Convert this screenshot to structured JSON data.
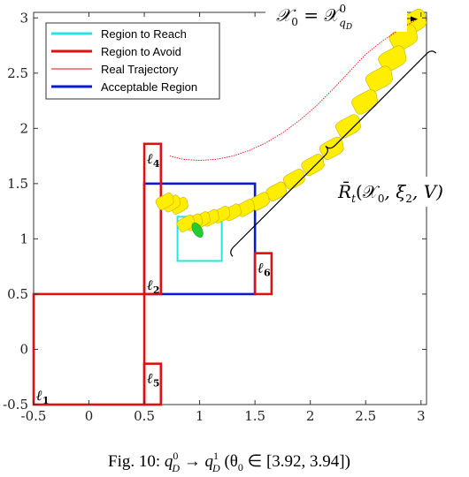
{
  "chart_data": {
    "type": "line",
    "xlim": [
      -0.5,
      3.05
    ],
    "ylim": [
      -0.5,
      3.05
    ],
    "xticks": [
      -0.5,
      0,
      0.5,
      1,
      1.5,
      2,
      2.5,
      3
    ],
    "yticks": [
      -0.5,
      0,
      0.5,
      1,
      1.5,
      2,
      2.5,
      3
    ],
    "xtick_labels": [
      "-0.5",
      "0",
      "0.5",
      "1",
      "1.5",
      "2",
      "2.5",
      "3"
    ],
    "ytick_labels": [
      "-0.5",
      "0",
      "0.5",
      "1",
      "1.5",
      "2",
      "2.5",
      "3"
    ],
    "grid": false,
    "legend_position": "top-left",
    "legend": [
      {
        "label": "Region to Reach",
        "color": "#22e5e5",
        "style": "thick"
      },
      {
        "label": "Region to Avoid",
        "color": "#dd1111",
        "style": "thick"
      },
      {
        "label": "Real Trajectory",
        "color": "#dd1111",
        "style": "thin"
      },
      {
        "label": "Acceptable Region",
        "color": "#0a1ad0",
        "style": "thick"
      }
    ],
    "avoid_regions": [
      {
        "label": "ℓ",
        "sub": "1",
        "x": [
          -0.5,
          0.5
        ],
        "y": [
          -0.5,
          0.5
        ]
      },
      {
        "label": "ℓ",
        "sub": "4",
        "x": [
          0.5,
          0.65
        ],
        "y": [
          0.5,
          1.86
        ]
      },
      {
        "label": "ℓ",
        "sub": "5",
        "x": [
          0.5,
          0.65
        ],
        "y": [
          -0.5,
          -0.13
        ]
      },
      {
        "label": "ℓ",
        "sub": "6",
        "x": [
          1.5,
          1.65
        ],
        "y": [
          0.5,
          0.87
        ]
      }
    ],
    "acceptable_region": {
      "label": "ℓ",
      "sub": "2",
      "x": [
        0.5,
        1.5
      ],
      "y": [
        0.5,
        1.5
      ]
    },
    "reach_region": {
      "x": [
        0.8,
        1.2
      ],
      "y": [
        0.8,
        1.2
      ]
    },
    "trajectory": {
      "x": [
        0.73,
        0.85,
        1.0,
        1.15,
        1.3,
        1.45,
        1.6,
        1.75,
        1.9,
        2.05,
        2.2,
        2.35,
        2.5,
        2.65,
        2.8,
        2.9,
        2.97
      ],
      "y": [
        1.75,
        1.72,
        1.71,
        1.72,
        1.75,
        1.8,
        1.87,
        1.96,
        2.07,
        2.2,
        2.35,
        2.51,
        2.67,
        2.79,
        2.89,
        2.95,
        2.99
      ]
    },
    "reach_set_blobs": [
      {
        "x": 2.93,
        "y": 2.96
      },
      {
        "x": 2.85,
        "y": 2.82
      },
      {
        "x": 2.75,
        "y": 2.63
      },
      {
        "x": 2.63,
        "y": 2.45
      },
      {
        "x": 2.5,
        "y": 2.24
      },
      {
        "x": 2.35,
        "y": 2.02
      },
      {
        "x": 2.2,
        "y": 1.82
      },
      {
        "x": 2.03,
        "y": 1.67
      },
      {
        "x": 1.86,
        "y": 1.54
      },
      {
        "x": 1.7,
        "y": 1.43
      },
      {
        "x": 1.55,
        "y": 1.34
      },
      {
        "x": 1.42,
        "y": 1.28
      },
      {
        "x": 1.3,
        "y": 1.24
      },
      {
        "x": 1.2,
        "y": 1.22
      },
      {
        "x": 1.1,
        "y": 1.19
      },
      {
        "x": 1.02,
        "y": 1.17
      },
      {
        "x": 0.95,
        "y": 1.15
      },
      {
        "x": 0.88,
        "y": 1.14
      },
      {
        "x": 0.82,
        "y": 1.3
      },
      {
        "x": 0.75,
        "y": 1.32
      },
      {
        "x": 0.69,
        "y": 1.34
      }
    ],
    "green_blob": {
      "x": 0.98,
      "y": 1.08
    },
    "annotations": {
      "top_left": "𝒳",
      "top_sub": "0",
      "top_eq": " = 𝒳",
      "top_sup": "0",
      "top_subsub": "q",
      "top_subsubsub": "D",
      "brace_label": "R̄",
      "brace_sub": "t",
      "brace_args": "(𝒳",
      "brace_args_sub": "0",
      "brace_args_rest": ", ξ",
      "brace_xi_sub": "2",
      "brace_end": ", V)"
    },
    "caption": {
      "prefix": "Fig. 10: ",
      "q": "q",
      "sub": "D",
      "sup0": "0",
      "arrow": " → ",
      "sup1": "1",
      "cond_open": " (θ",
      "cond_sub": "0",
      "cond_rest": " ∈ [3.92, 3.94])"
    },
    "colors": {
      "reach": "#22e5e5",
      "avoid": "#dd1111",
      "acceptable": "#0a1ad0",
      "reach_set_fill": "#ffee00",
      "reach_set_stroke": "#c9b000",
      "green": "#22cc33"
    }
  }
}
